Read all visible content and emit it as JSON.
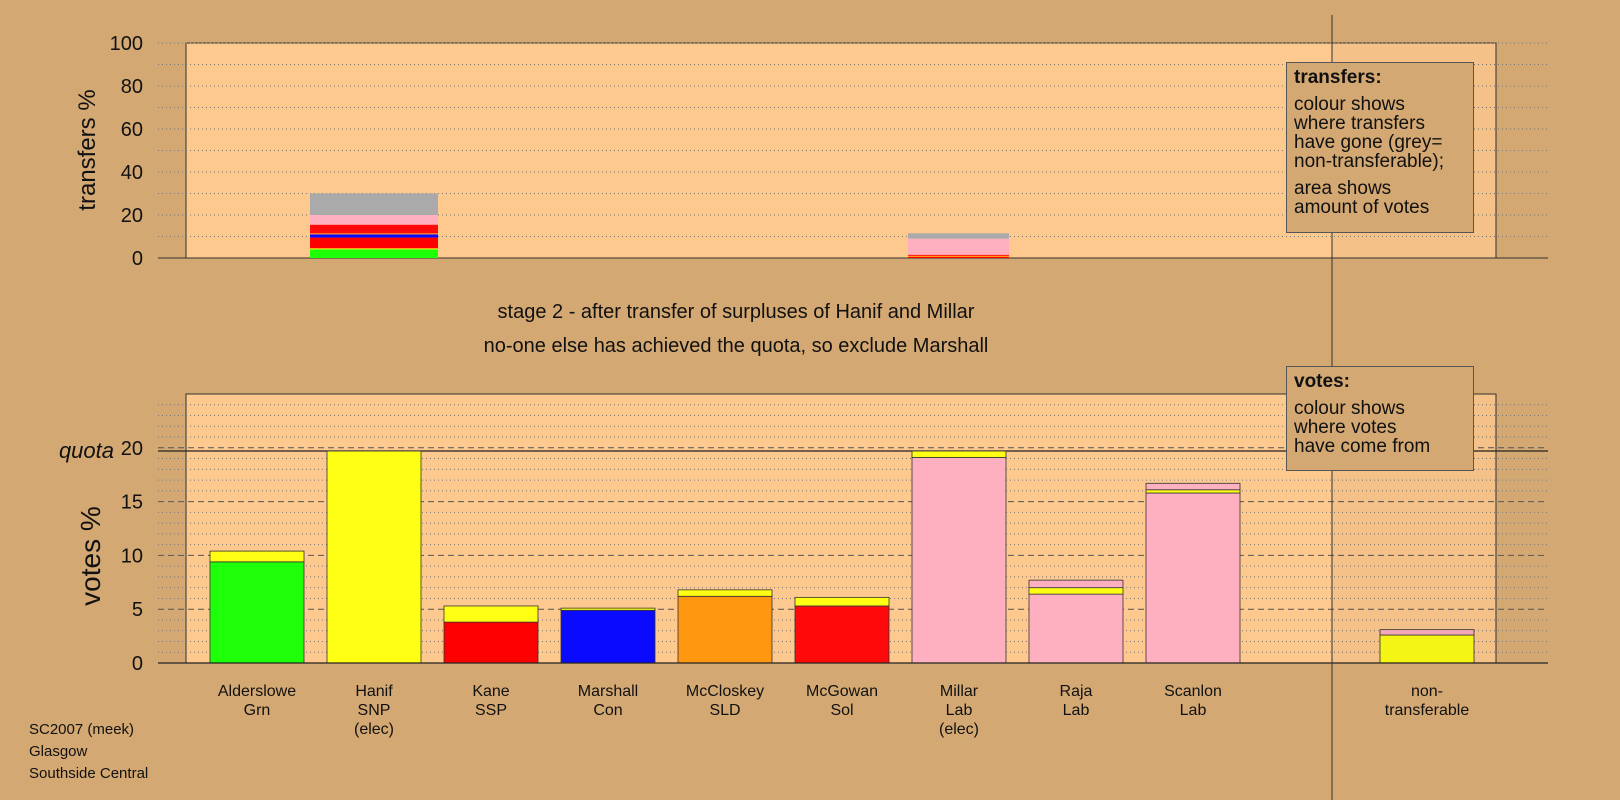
{
  "colors": {
    "background": "#d4a872",
    "plot_bg": "#fec98e",
    "Grn": "#1eff0a",
    "SNP": "#ffff14",
    "SSP": "#ff0000",
    "Con": "#0a0aff",
    "SLD": "#ff9810",
    "Sol": "#ff0a0a",
    "Lab": "#ffb0c0",
    "nontransferable": "#aaaaaa"
  },
  "captions": {
    "line1": "stage 2 - after transfer of surpluses of Hanif and Millar",
    "line2": "no-one else has achieved the quota, so exclude Marshall"
  },
  "legend_transfers": {
    "title": "transfers:",
    "text1": "colour shows\nwhere transfers\nhave gone (grey=\nnon-transferable);",
    "text2": "area shows\namount of votes"
  },
  "legend_votes": {
    "title": "votes:",
    "text1": "colour shows\nwhere votes\nhave come from"
  },
  "footer": {
    "line1": "SC2007 (meek)",
    "line2": "Glasgow",
    "line3": "Southside Central"
  },
  "chart_data": [
    {
      "type": "bar",
      "ylabel": "transfers %",
      "ylim": [
        0,
        100
      ],
      "yticks": [
        0,
        20,
        40,
        60,
        80,
        100
      ],
      "grid": "dotted",
      "transfers": [
        {
          "from": "Hanif",
          "total": 30,
          "segments": [
            {
              "party": "Grn",
              "value": 4
            },
            {
              "party": "SNP",
              "value": 0.5
            },
            {
              "party": "SSP",
              "value": 5
            },
            {
              "party": "Con",
              "value": 1.5
            },
            {
              "party": "SLD",
              "value": 0.5
            },
            {
              "party": "Sol",
              "value": 4
            },
            {
              "party": "Lab",
              "value": 4.5
            },
            {
              "party": "nontransferable",
              "value": 10
            }
          ]
        },
        {
          "from": "Millar",
          "total": 11.5,
          "segments": [
            {
              "party": "SSP",
              "value": 0.5
            },
            {
              "party": "SLD",
              "value": 0.5
            },
            {
              "party": "Sol",
              "value": 0.5
            },
            {
              "party": "Lab",
              "value": 7.5
            },
            {
              "party": "nontransferable",
              "value": 2.5
            }
          ]
        }
      ]
    },
    {
      "type": "bar",
      "ylabel": "votes %",
      "ylim": [
        0,
        25
      ],
      "yticks": [
        0,
        5,
        10,
        15,
        20
      ],
      "quota": 19.7,
      "quota_label": "quota",
      "candidates": [
        {
          "name": "Alderslowe",
          "party": "Grn",
          "note": "",
          "segments": [
            {
              "party": "Grn",
              "value": 9.4
            },
            {
              "party": "SNP",
              "value": 1.0
            }
          ]
        },
        {
          "name": "Hanif",
          "party": "SNP",
          "note": "(elec)",
          "segments": [
            {
              "party": "SNP",
              "value": 19.7
            }
          ]
        },
        {
          "name": "Kane",
          "party": "SSP",
          "note": "",
          "segments": [
            {
              "party": "SSP",
              "value": 3.8
            },
            {
              "party": "SNP",
              "value": 1.5
            }
          ]
        },
        {
          "name": "Marshall",
          "party": "Con",
          "note": "",
          "segments": [
            {
              "party": "Con",
              "value": 4.9
            },
            {
              "party": "SNP",
              "value": 0.2
            }
          ]
        },
        {
          "name": "McCloskey",
          "party": "SLD",
          "note": "",
          "segments": [
            {
              "party": "SLD",
              "value": 6.2
            },
            {
              "party": "SNP",
              "value": 0.6
            }
          ]
        },
        {
          "name": "McGowan",
          "party": "Sol",
          "note": "",
          "segments": [
            {
              "party": "Sol",
              "value": 5.3
            },
            {
              "party": "SNP",
              "value": 0.8
            }
          ]
        },
        {
          "name": "Millar",
          "party": "Lab",
          "note": "(elec)",
          "segments": [
            {
              "party": "Lab",
              "value": 19.1
            },
            {
              "party": "SNP",
              "value": 0.6
            }
          ]
        },
        {
          "name": "Raja",
          "party": "Lab",
          "note": "",
          "segments": [
            {
              "party": "Lab",
              "value": 6.4
            },
            {
              "party": "SNP",
              "value": 0.6
            },
            {
              "party": "Lab",
              "value": 0.7
            }
          ]
        },
        {
          "name": "Scanlon",
          "party": "Lab",
          "note": "",
          "segments": [
            {
              "party": "Lab",
              "value": 15.8
            },
            {
              "party": "SNP",
              "value": 0.3
            },
            {
              "party": "Lab",
              "value": 0.6
            }
          ]
        }
      ],
      "nontransferable": {
        "label": "non-\ntransferable",
        "segments": [
          {
            "party": "SNP",
            "value": 2.6
          },
          {
            "party": "Lab",
            "value": 0.5
          }
        ]
      }
    }
  ]
}
